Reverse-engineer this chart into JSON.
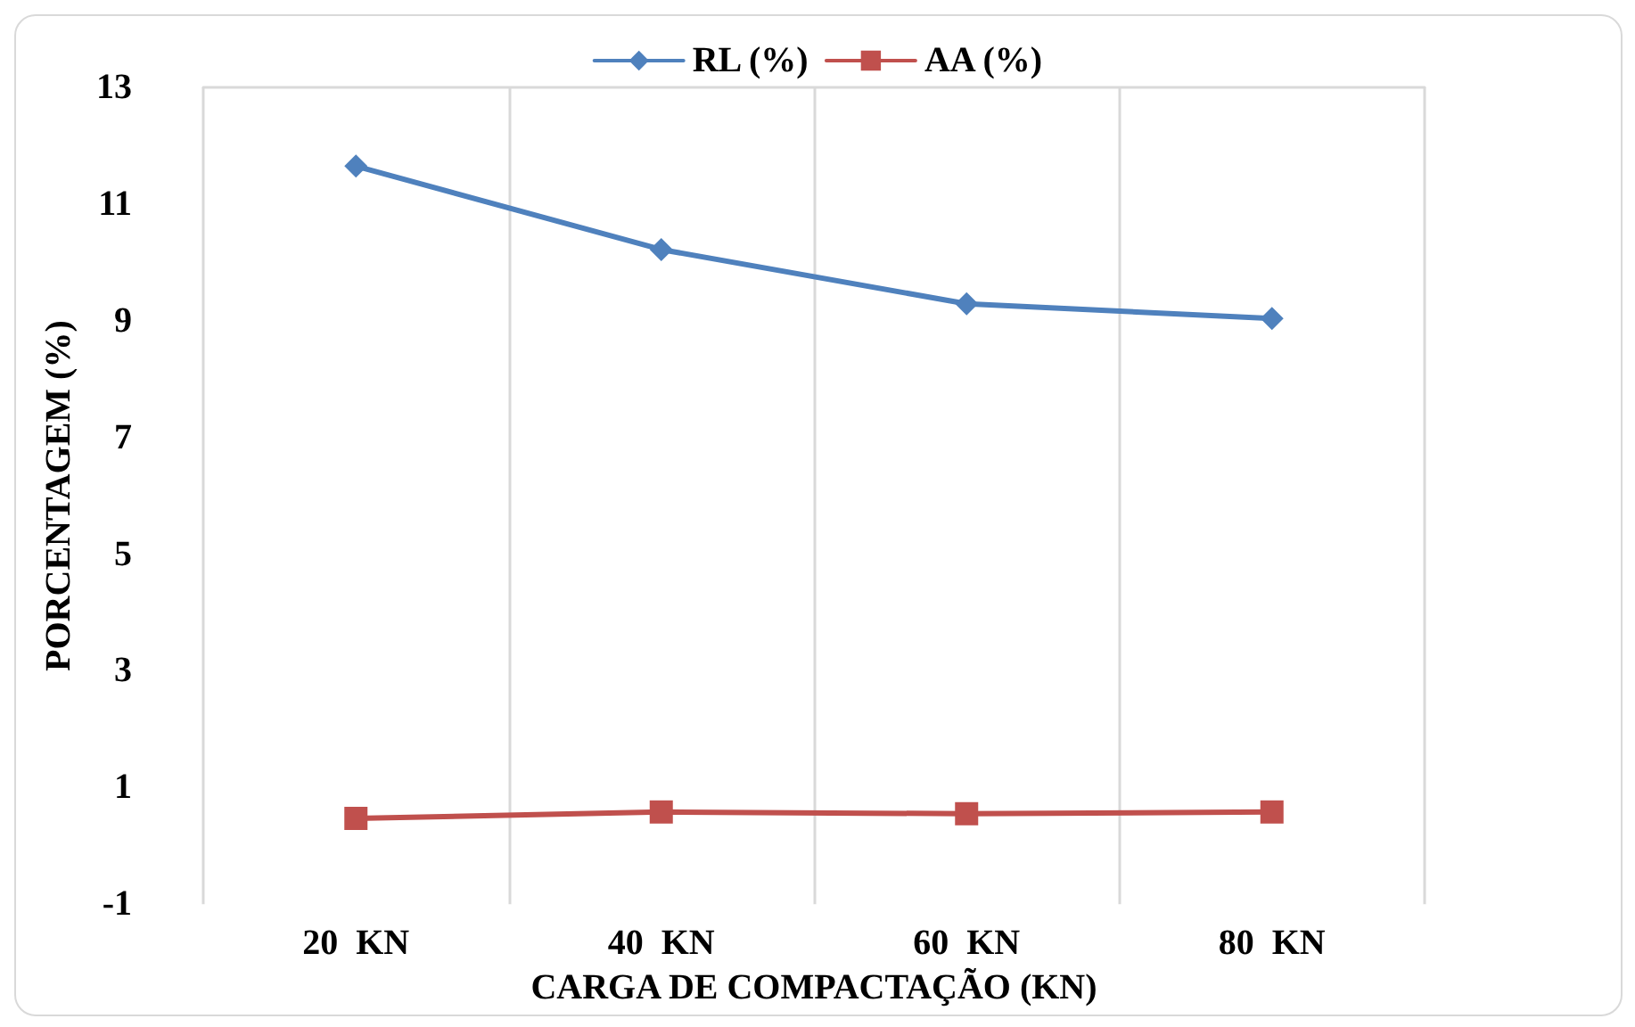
{
  "chart_data": {
    "type": "line",
    "xlabel": "CARGA DE COMPACTAÇÃO (KN)",
    "ylabel": "PORCENTAGEM (%)",
    "categories": [
      "20  KN",
      "40  KN",
      "60  KN",
      "80  KN"
    ],
    "series": [
      {
        "name": "RL (%)",
        "color": "#4f81bd",
        "marker": "diamond",
        "values": [
          11.65,
          10.22,
          9.29,
          9.04
        ]
      },
      {
        "name": "AA (%)",
        "color": "#c0504d",
        "marker": "square",
        "values": [
          0.47,
          0.58,
          0.55,
          0.58
        ]
      }
    ],
    "ylim": [
      -1,
      13
    ],
    "yticks": [
      -1,
      1,
      3,
      5,
      7,
      9,
      11,
      13
    ],
    "grid": "x",
    "legend": "top",
    "line_style": "solid"
  }
}
